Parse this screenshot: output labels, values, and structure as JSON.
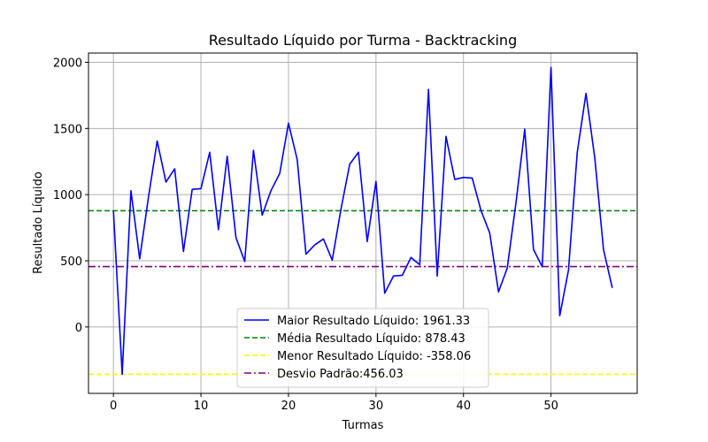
{
  "chart_data": {
    "type": "line",
    "title": "Resultado Líquido por Turma - Backtracking",
    "xlabel": "Turmas",
    "ylabel": "Resultado Líquido",
    "xlim": [
      -2.85,
      59.85
    ],
    "ylim": [
      -502,
      2070
    ],
    "xticks": [
      0,
      10,
      20,
      30,
      40,
      50
    ],
    "yticks": [
      0,
      500,
      1000,
      1500,
      2000
    ],
    "grid": true,
    "legend_position": "bottom-center",
    "series": [
      {
        "name": "Maior Resultado Líquido: 1961.33",
        "color": "#0000ff",
        "style": "solid",
        "x": [
          0,
          1,
          2,
          3,
          4,
          5,
          6,
          7,
          8,
          9,
          10,
          11,
          12,
          13,
          14,
          15,
          16,
          17,
          18,
          19,
          20,
          21,
          22,
          23,
          24,
          25,
          26,
          27,
          28,
          29,
          30,
          31,
          32,
          33,
          34,
          35,
          36,
          37,
          38,
          39,
          40,
          41,
          42,
          43,
          44,
          45,
          46,
          47,
          48,
          49,
          50,
          51,
          52,
          53,
          54,
          55,
          56,
          57
        ],
        "y": [
          878,
          -358,
          1030,
          515,
          980,
          1405,
          1095,
          1195,
          570,
          1040,
          1045,
          1320,
          735,
          1290,
          675,
          495,
          1335,
          845,
          1030,
          1160,
          1540,
          1265,
          550,
          620,
          665,
          505,
          890,
          1230,
          1320,
          645,
          1100,
          255,
          385,
          390,
          525,
          470,
          1795,
          385,
          1440,
          1115,
          1130,
          1125,
          880,
          710,
          265,
          445,
          940,
          1495,
          585,
          455,
          1961.33,
          85,
          430,
          1320,
          1765,
          1280,
          585,
          295
        ]
      },
      {
        "name": "Média Resultado Líquido: 878.43",
        "color": "#008000",
        "style": "dashed",
        "y": 878.43
      },
      {
        "name": "Menor Resultado Líquido: -358.06",
        "color": "#ffff00",
        "style": "dashed",
        "y": -358.06
      },
      {
        "name": "Desvio Padrão:456.03",
        "color": "#800080",
        "style": "dashdot",
        "y": 456.03
      }
    ]
  }
}
